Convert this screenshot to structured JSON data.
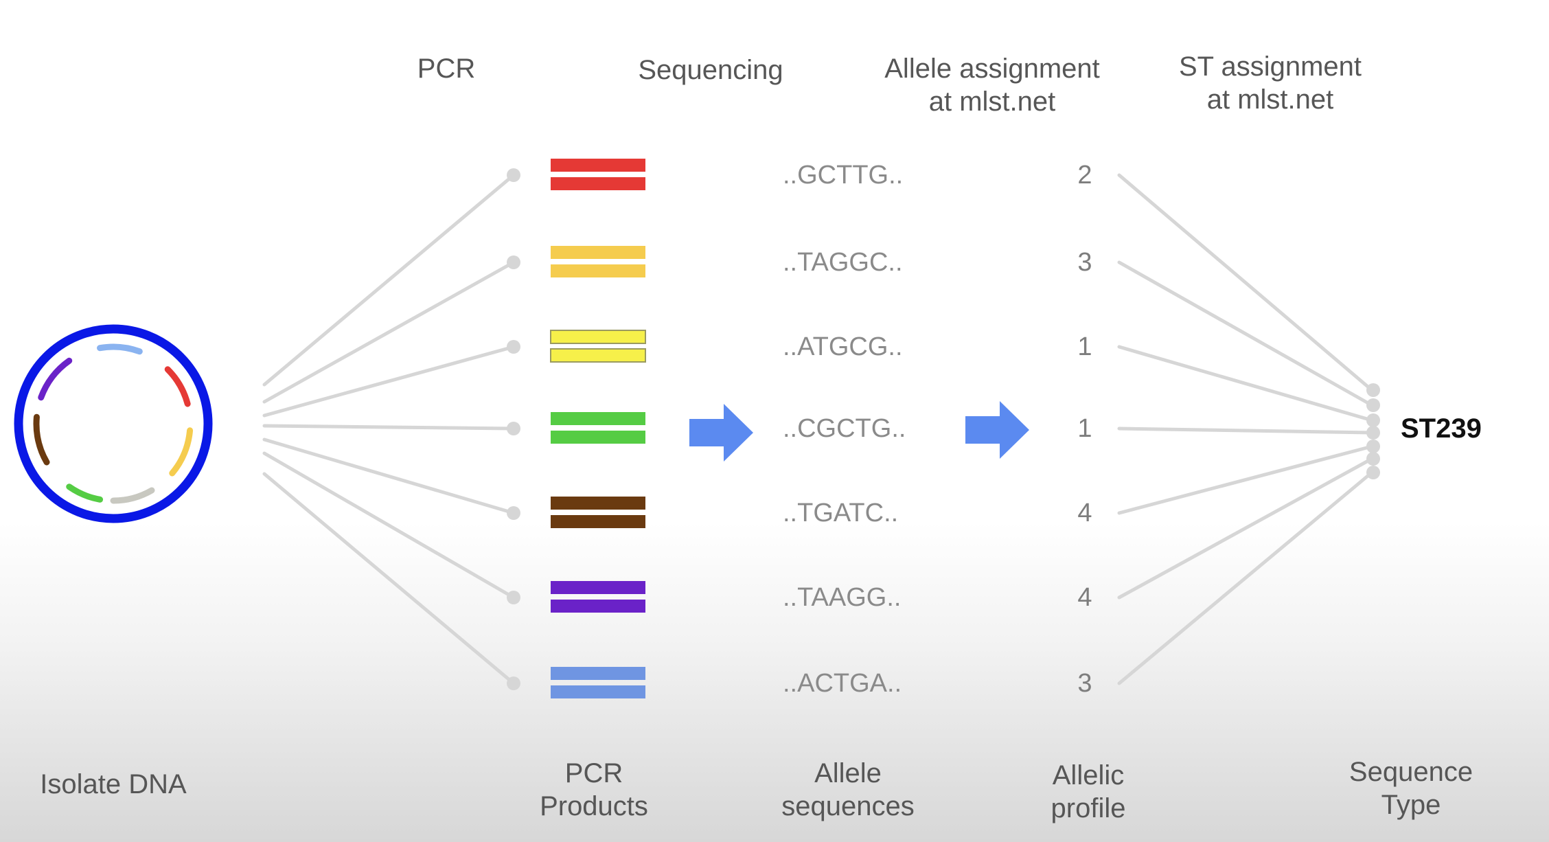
{
  "header": {
    "pcr": "PCR",
    "sequencing": "Sequencing",
    "allele_assignment": "Allele assignment\nat mlst.net",
    "st_assignment": "ST assignment\nat mlst.net"
  },
  "footer": {
    "isolate_dna": "Isolate DNA",
    "pcr_products": "PCR\nProducts",
    "allele_sequences": "Allele\nsequences",
    "allelic_profile": "Allelic\nprofile",
    "sequence_type": "Sequence\nType"
  },
  "loci": [
    {
      "color": "#e53935",
      "sequence": "..GCTTG..",
      "allele": "2"
    },
    {
      "color": "#f5cc4e",
      "sequence": "..TAGGC..",
      "allele": "3"
    },
    {
      "color": "#f6f04a",
      "sequence": "..ATGCG..",
      "allele": "1"
    },
    {
      "color": "#55cc44",
      "sequence": "..CGCTG..",
      "allele": "1"
    },
    {
      "color": "#6a3a10",
      "sequence": "..TGATC..",
      "allele": "4"
    },
    {
      "color": "#6a22c8",
      "sequence": "..TAAGG..",
      "allele": "4"
    },
    {
      "color": "#6f95e2",
      "sequence": "..ACTGA..",
      "allele": "3"
    }
  ],
  "result": {
    "st": "ST239"
  },
  "colors": {
    "plasmid_ring": "#0a18e6",
    "arrow": "#5b8af0",
    "connector": "#d6d6d6"
  },
  "plasmid_arcs": [
    "#8ab3f0",
    "#e53935",
    "#f5cc4e",
    "#c8c8c0",
    "#55cc44",
    "#6a3a10",
    "#6a22c8"
  ]
}
